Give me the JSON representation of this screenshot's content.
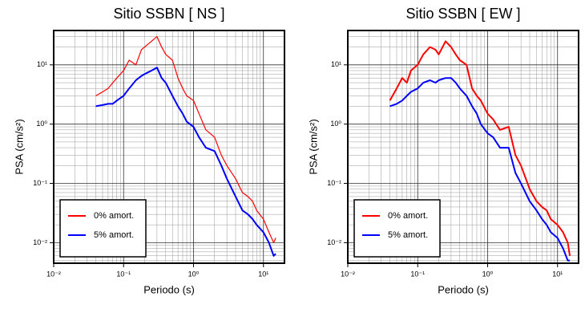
{
  "chart_data": [
    {
      "type": "line",
      "title": "Sitio SSBN [ NS ]",
      "xlabel": "Periodo (s)",
      "ylabel": "PSA (cm/s²)",
      "xlog": true,
      "ylog": true,
      "grid": true,
      "minor_grid": true,
      "legend": "lower left",
      "xlim": [
        0.01,
        20
      ],
      "ylim": [
        0.0045,
        38
      ],
      "xticks": [
        {
          "value": 0.01,
          "label": "10⁻²"
        },
        {
          "value": 0.1,
          "label": "10⁻¹"
        },
        {
          "value": 1,
          "label": "10⁰"
        },
        {
          "value": 10,
          "label": "10¹"
        }
      ],
      "yticks": [
        {
          "value": 0.01,
          "label": "10⁻²"
        },
        {
          "value": 0.1,
          "label": "10⁻¹"
        },
        {
          "value": 1,
          "label": "10⁰"
        },
        {
          "value": 10,
          "label": "10¹"
        }
      ],
      "x": [
        0.04,
        0.05,
        0.06,
        0.07,
        0.08,
        0.1,
        0.12,
        0.15,
        0.18,
        0.2,
        0.25,
        0.3,
        0.35,
        0.4,
        0.5,
        0.6,
        0.7,
        0.8,
        1,
        1.2,
        1.5,
        2,
        2.5,
        3,
        4,
        5,
        6,
        7,
        8,
        10,
        12,
        14,
        15
      ],
      "series": [
        {
          "name": "0% amort.",
          "color": "#ff0000",
          "width": 1.2,
          "values": [
            3,
            3.5,
            4,
            5,
            6,
            8,
            12,
            10,
            18,
            20,
            25,
            30,
            20,
            15,
            12,
            6,
            4,
            3,
            2.5,
            1.5,
            0.8,
            0.6,
            0.3,
            0.2,
            0.12,
            0.07,
            0.06,
            0.05,
            0.035,
            0.025,
            0.015,
            0.01,
            0.012
          ]
        },
        {
          "name": "5% amort.",
          "color": "#0000ff",
          "width": 2,
          "values": [
            2,
            2.1,
            2.2,
            2.2,
            2.5,
            3,
            4,
            5.5,
            6.5,
            7,
            8,
            9,
            6,
            5,
            3,
            2,
            1.5,
            1.1,
            0.9,
            0.6,
            0.4,
            0.35,
            0.2,
            0.12,
            0.06,
            0.035,
            0.03,
            0.025,
            0.02,
            0.015,
            0.01,
            0.006,
            0.0065
          ]
        }
      ]
    },
    {
      "type": "line",
      "title": "Sitio SSBN [ EW ]",
      "xlabel": "Periodo (s)",
      "ylabel": "PSA (cm/s²)",
      "xlog": true,
      "ylog": true,
      "grid": true,
      "minor_grid": true,
      "legend": "lower left",
      "xlim": [
        0.01,
        20
      ],
      "ylim": [
        0.0045,
        38
      ],
      "xticks": [
        {
          "value": 0.01,
          "label": "10⁻²"
        },
        {
          "value": 0.1,
          "label": "10⁻¹"
        },
        {
          "value": 1,
          "label": "10⁰"
        },
        {
          "value": 10,
          "label": "10¹"
        }
      ],
      "yticks": [
        {
          "value": 0.01,
          "label": "10⁻²"
        },
        {
          "value": 0.1,
          "label": "10⁻¹"
        },
        {
          "value": 1,
          "label": "10⁰"
        },
        {
          "value": 10,
          "label": "10¹"
        }
      ],
      "x": [
        0.04,
        0.05,
        0.06,
        0.07,
        0.08,
        0.1,
        0.12,
        0.15,
        0.18,
        0.2,
        0.25,
        0.3,
        0.35,
        0.4,
        0.5,
        0.6,
        0.7,
        0.8,
        1,
        1.2,
        1.5,
        2,
        2.5,
        3,
        4,
        5,
        6,
        7,
        8,
        10,
        12,
        14,
        15
      ],
      "series": [
        {
          "name": "0% amort.",
          "color": "#ff0000",
          "width": 2,
          "values": [
            2.5,
            4,
            6,
            5,
            8,
            10,
            15,
            20,
            18,
            15,
            25,
            20,
            15,
            12,
            10,
            4,
            3,
            2.5,
            1.5,
            1.2,
            0.8,
            0.9,
            0.3,
            0.2,
            0.08,
            0.05,
            0.04,
            0.035,
            0.025,
            0.02,
            0.015,
            0.01,
            0.006
          ]
        },
        {
          "name": "5% amort.",
          "color": "#0000ff",
          "width": 2,
          "values": [
            2,
            2.2,
            2.5,
            3,
            3.5,
            4,
            5,
            5.5,
            5,
            5.5,
            6,
            6,
            5,
            4,
            3,
            2,
            1.5,
            1,
            0.7,
            0.6,
            0.4,
            0.4,
            0.15,
            0.1,
            0.05,
            0.035,
            0.025,
            0.02,
            0.015,
            0.012,
            0.008,
            0.005,
            0.005
          ]
        }
      ]
    }
  ]
}
